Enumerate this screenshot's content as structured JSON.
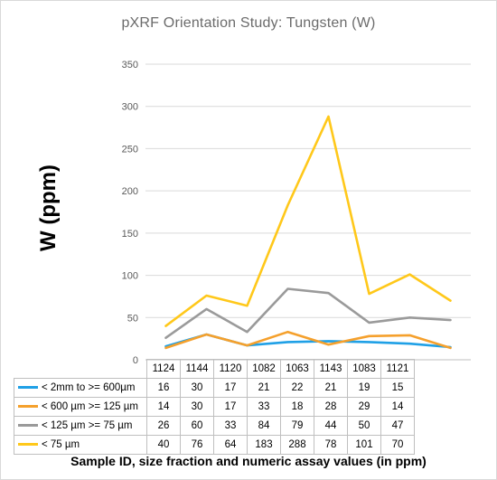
{
  "chart_data": {
    "type": "line",
    "title": "pXRF Orientation Study: Tungsten (W)",
    "ylabel": "W (ppm)",
    "xlabel": "Sample ID, size fraction and numeric assay values (in ppm)",
    "ylim": [
      0,
      350
    ],
    "yticks": [
      0,
      50,
      100,
      150,
      200,
      250,
      300,
      350
    ],
    "grid": true,
    "legend_placement": "data table below chart",
    "categories": [
      "1124",
      "1144",
      "1120",
      "1082",
      "1063",
      "1143",
      "1083",
      "1121"
    ],
    "series": [
      {
        "name": "< 2mm to >= 600µm",
        "color": "#1fa0e6",
        "values": [
          16,
          30,
          17,
          21,
          22,
          21,
          19,
          15
        ]
      },
      {
        "name": "< 600 µm >= 125 µm",
        "color": "#f5a02c",
        "values": [
          14,
          30,
          17,
          33,
          18,
          28,
          29,
          14
        ]
      },
      {
        "name": "< 125 µm >= 75 µm",
        "color": "#9a9a9a",
        "values": [
          26,
          60,
          33,
          84,
          79,
          44,
          50,
          47
        ]
      },
      {
        "name": "< 75 µm",
        "color": "#ffc81a",
        "values": [
          40,
          76,
          64,
          183,
          288,
          78,
          101,
          70
        ]
      }
    ]
  }
}
